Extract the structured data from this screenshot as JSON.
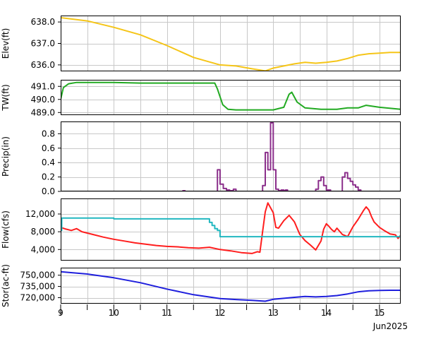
{
  "chart_data": [
    {
      "type": "line",
      "ylabel": "Elev(ft)",
      "ylim": [
        635.7,
        638.3
      ],
      "yticks": [
        636.0,
        637.0,
        638.0
      ],
      "ytick_labels": [
        "636.0",
        "637.0",
        "638.0"
      ],
      "series": [
        {
          "color": "#f5c518",
          "x": [
            0,
            0.5,
            1,
            1.5,
            2,
            2.5,
            3,
            3.3,
            3.6,
            3.85,
            4.0,
            4.2,
            4.4,
            4.6,
            4.8,
            5.0,
            5.2,
            5.4,
            5.6,
            5.8,
            6.0,
            6.2,
            6.4
          ],
          "y": [
            638.2,
            638.05,
            637.75,
            637.4,
            636.9,
            636.35,
            636.0,
            635.95,
            635.82,
            635.72,
            635.85,
            635.95,
            636.05,
            636.12,
            636.08,
            636.12,
            636.18,
            636.3,
            636.45,
            636.52,
            636.55,
            636.58,
            636.58
          ]
        }
      ]
    },
    {
      "type": "line",
      "ylabel": "TW(ft)",
      "ylim": [
        488.8,
        491.5
      ],
      "yticks": [
        489.0,
        490.0,
        491.0
      ],
      "ytick_labels": [
        "489.0",
        "490.0",
        "491.0"
      ],
      "series": [
        {
          "color": "#22aa22",
          "x": [
            0,
            0.05,
            0.15,
            0.3,
            0.6,
            1,
            1.5,
            2,
            2.5,
            2.9,
            2.95,
            3.05,
            3.15,
            3.3,
            3.6,
            4.0,
            4.2,
            4.3,
            4.35,
            4.45,
            4.6,
            4.9,
            5.2,
            5.4,
            5.6,
            5.75,
            6.0,
            6.4
          ],
          "y": [
            490.0,
            490.9,
            491.2,
            491.3,
            491.3,
            491.3,
            491.25,
            491.25,
            491.25,
            491.25,
            490.8,
            489.6,
            489.25,
            489.2,
            489.2,
            489.2,
            489.4,
            490.4,
            490.55,
            489.8,
            489.35,
            489.25,
            489.25,
            489.35,
            489.35,
            489.55,
            489.4,
            489.25
          ]
        }
      ]
    },
    {
      "type": "line",
      "ylabel": "Precip(in)",
      "ylim": [
        0,
        0.97
      ],
      "yticks": [
        0.0,
        0.2,
        0.4,
        0.6,
        0.8
      ],
      "ytick_labels": [
        "0.0",
        "0.2",
        "0.4",
        "0.6",
        "0.8"
      ],
      "series": [
        {
          "color": "#8b2f8b",
          "x": [
            0,
            2.3,
            2.3,
            2.34,
            2.34,
            2.95,
            2.95,
            3.0,
            3.0,
            3.06,
            3.06,
            3.12,
            3.12,
            3.18,
            3.18,
            3.25,
            3.25,
            3.3,
            3.3,
            3.8,
            3.8,
            3.85,
            3.85,
            3.9,
            3.9,
            3.95,
            3.95,
            4.0,
            4.0,
            4.05,
            4.05,
            4.1,
            4.1,
            4.15,
            4.15,
            4.2,
            4.2,
            4.23,
            4.23,
            4.27,
            4.27,
            4.8,
            4.8,
            4.85,
            4.85,
            4.9,
            4.9,
            4.95,
            4.95,
            5.0,
            5.0,
            5.08,
            5.08,
            5.3,
            5.3,
            5.35,
            5.35,
            5.4,
            5.4,
            5.45,
            5.45,
            5.5,
            5.5,
            5.55,
            5.55,
            5.6,
            5.6,
            5.65,
            5.65,
            6.4
          ],
          "y": [
            0,
            0,
            0.01,
            0.01,
            0,
            0,
            0.3,
            0.3,
            0.1,
            0.1,
            0.04,
            0.04,
            0.02,
            0.02,
            0.01,
            0.01,
            0.03,
            0.03,
            0,
            0,
            0.08,
            0.08,
            0.54,
            0.54,
            0.3,
            0.3,
            0.95,
            0.95,
            0.3,
            0.3,
            0.03,
            0.03,
            0.01,
            0.01,
            0.02,
            0.02,
            0.01,
            0.01,
            0.02,
            0.02,
            0,
            0,
            0.03,
            0.03,
            0.15,
            0.15,
            0.2,
            0.2,
            0.08,
            0.08,
            0.02,
            0.02,
            0,
            0,
            0.2,
            0.2,
            0.26,
            0.26,
            0.18,
            0.18,
            0.14,
            0.14,
            0.09,
            0.09,
            0.06,
            0.06,
            0.02,
            0.02,
            0,
            0
          ]
        }
      ]
    },
    {
      "type": "line",
      "ylabel": "Flow(cfs)",
      "ylim": [
        1500,
        15500
      ],
      "yticks": [
        4000,
        8000,
        12000
      ],
      "ytick_labels": [
        "4,000",
        "8,000",
        "12,000"
      ],
      "series": [
        {
          "color": "#ff1e1e",
          "x": [
            0,
            0.1,
            0.2,
            0.3,
            0.4,
            0.5,
            0.6,
            0.8,
            1.0,
            1.2,
            1.4,
            1.6,
            1.8,
            2.0,
            2.2,
            2.4,
            2.6,
            2.8,
            3.0,
            3.2,
            3.4,
            3.6,
            3.7,
            3.75,
            3.8,
            3.85,
            3.9,
            4.0,
            4.05,
            4.1,
            4.2,
            4.3,
            4.4,
            4.5,
            4.6,
            4.7,
            4.8,
            4.9,
            4.95,
            5.0,
            5.05,
            5.1,
            5.15,
            5.2,
            5.3,
            5.4,
            5.5,
            5.6,
            5.7,
            5.75,
            5.8,
            5.85,
            5.9,
            6.0,
            6.1,
            6.2,
            6.3,
            6.35,
            6.4
          ],
          "y": [
            9000,
            8600,
            8300,
            8700,
            8000,
            7700,
            7400,
            6800,
            6300,
            5900,
            5500,
            5200,
            4900,
            4700,
            4600,
            4400,
            4300,
            4500,
            4000,
            3700,
            3300,
            3100,
            3500,
            3400,
            8000,
            12500,
            14500,
            12300,
            9000,
            8800,
            10500,
            11700,
            10200,
            7400,
            6000,
            5000,
            3900,
            5900,
            8600,
            9800,
            9200,
            8500,
            8000,
            8800,
            7400,
            6900,
            9100,
            10800,
            12800,
            13600,
            12900,
            11400,
            10200,
            9000,
            8200,
            7500,
            7300,
            6500,
            7200
          ]
        },
        {
          "color": "#22b8c0",
          "x": [
            0,
            0.02,
            0.02,
            1.0,
            1.0,
            2.8,
            2.8,
            2.85,
            2.85,
            2.9,
            2.9,
            2.95,
            2.95,
            3.0,
            3.0,
            6.4
          ],
          "y": [
            8300,
            8300,
            11100,
            11100,
            10900,
            10900,
            10100,
            10100,
            9400,
            9400,
            8700,
            8700,
            8300,
            8300,
            6900,
            6900
          ]
        }
      ]
    },
    {
      "type": "line",
      "ylabel": "Stor(ac-ft)",
      "ylim": [
        712000,
        760000
      ],
      "yticks": [
        720000,
        735000,
        750000
      ],
      "ytick_labels": [
        "720,000",
        "735,000",
        "750,000"
      ],
      "series": [
        {
          "color": "#1f1fdd",
          "x": [
            0,
            0.5,
            1,
            1.5,
            2,
            2.5,
            3,
            3.3,
            3.6,
            3.85,
            4.0,
            4.2,
            4.4,
            4.6,
            4.8,
            5.0,
            5.2,
            5.4,
            5.6,
            5.8,
            6.0,
            6.2,
            6.4
          ],
          "y": [
            754500,
            751500,
            746500,
            740000,
            731500,
            724000,
            718800,
            717600,
            716500,
            715300,
            717800,
            719200,
            720500,
            721600,
            721000,
            721600,
            722800,
            725000,
            727800,
            729100,
            729600,
            729900,
            729900
          ]
        }
      ]
    }
  ],
  "x_axis": {
    "xlim": [
      0,
      6.4
    ],
    "ticks": [
      0,
      1,
      2,
      3,
      4,
      5,
      6
    ],
    "tick_labels": [
      "9",
      "10",
      "11",
      "12",
      "13",
      "14",
      "15"
    ],
    "minor_ticks": [
      0.5,
      1.5,
      2.5,
      3.5,
      4.5,
      5.5
    ],
    "footer_label": "Jun2025"
  },
  "grid": true
}
